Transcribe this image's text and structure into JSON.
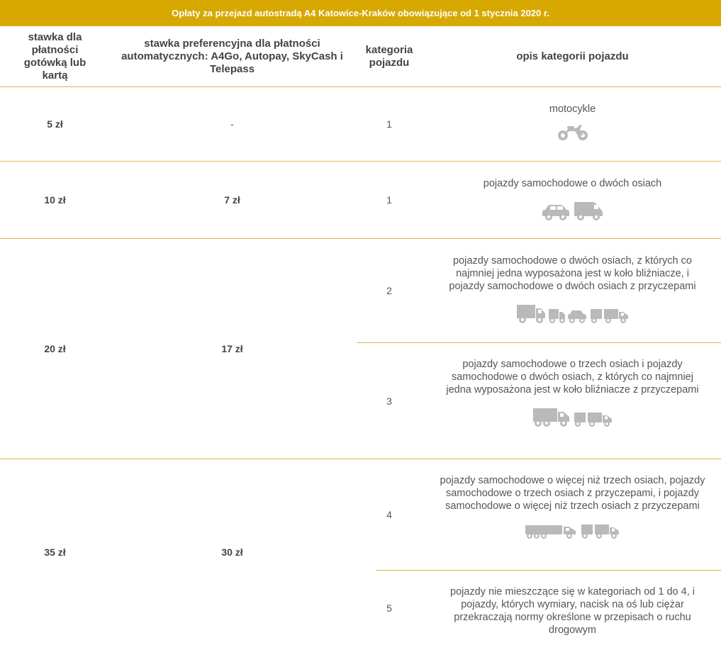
{
  "title": "Opłaty za przejazd autostradą A4 Katowice-Kraków obowiązujące od 1 stycznia 2020 r.",
  "headers": {
    "cash": "stawka dla płatności gotówką lub kartą",
    "preferential": "stawka preferencyjna dla płatności automatycznych: A4Go, Autopay, SkyCash i Telepass",
    "category": "kategoria pojazdu",
    "description": "opis kategorii pojazdu"
  },
  "rows": [
    {
      "cash": "5 zł",
      "preferential": "-",
      "items": [
        {
          "category": "1",
          "description": "motocykle",
          "icons": [
            "motorcycle-icon"
          ]
        }
      ]
    },
    {
      "cash": "10 zł",
      "preferential": "7 zł",
      "items": [
        {
          "category": "1",
          "description": "pojazdy samochodowe o dwóch osiach",
          "icons": [
            "car-icon",
            "van-icon"
          ]
        }
      ]
    },
    {
      "cash": "20 zł",
      "preferential": "17 zł",
      "items": [
        {
          "category": "2",
          "description": "pojazdy samochodowe o dwóch osiach, z których co najmniej jedna wyposażona jest w koło bliźniacze, i pojazdy samochodowe o dwóch osiach z przyczepami",
          "icons": [
            "truck-icon",
            "truck-with-car-trailer-icon",
            "truck-with-trailer-icon"
          ]
        },
        {
          "category": "3",
          "description": "pojazdy samochodowe o trzech osiach i pojazdy samochodowe o dwóch osiach, z których co najmniej jedna wyposażona jest w koło bliźniacze z przyczepami",
          "icons": [
            "three-axle-truck-icon",
            "truck-with-trailer-icon"
          ]
        }
      ]
    },
    {
      "cash": "35 zł",
      "preferential": "30 zł",
      "items": [
        {
          "category": "4",
          "description": "pojazdy samochodowe o więcej niż trzech osiach, pojazdy samochodowe o trzech osiach z przyczepami, i pojazdy samochodowe o więcej niż trzech osiach z przyczepami",
          "icons": [
            "semi-truck-icon",
            "truck-with-trailer-icon"
          ]
        },
        {
          "category": "5",
          "description": "pojazdy nie mieszczące się w kategoriach od 1 do 4, i pojazdy, których wymiary, nacisk na oś lub ciężar przekraczają normy określone w przepisach o ruchu drogowym",
          "icons": []
        }
      ]
    }
  ],
  "colors": {
    "accent": "#d6a800",
    "divider": "#d9b84a",
    "icon": "#b9b9b9"
  }
}
